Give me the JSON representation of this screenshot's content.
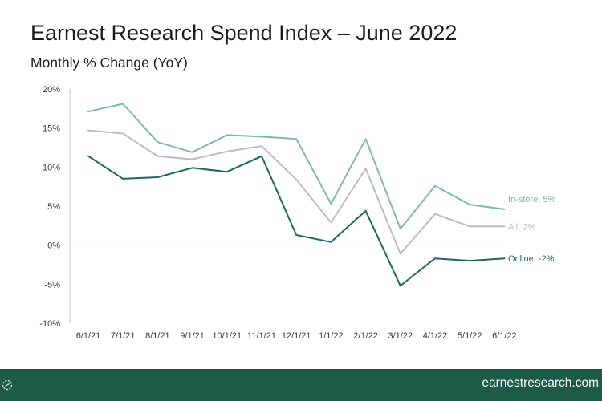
{
  "header": {
    "title": "Earnest Research Spend Index – June 2022",
    "subtitle": "Monthly % Change (YoY)"
  },
  "footer": {
    "url": "earnestresearch.com",
    "logo_icon": "earnest-logo-icon"
  },
  "chart_data": {
    "type": "line",
    "title": "Earnest Research Spend Index – June 2022",
    "subtitle": "Monthly % Change (YoY)",
    "xlabel": "",
    "ylabel": "",
    "categories": [
      "6/1/21",
      "7/1/21",
      "8/1/21",
      "9/1/21",
      "10/1/21",
      "11/1/21",
      "12/1/21",
      "1/1/22",
      "2/1/22",
      "3/1/22",
      "4/1/22",
      "5/1/22",
      "6/1/22"
    ],
    "ylim": [
      -10,
      20
    ],
    "yticks": [
      20,
      15,
      10,
      5,
      0,
      -5,
      -10
    ],
    "ytick_labels": [
      "20%",
      "15%",
      "10%",
      "5%",
      "0%",
      "-5%",
      "-10%"
    ],
    "grid": false,
    "legend": "inline-right",
    "series": [
      {
        "key": "instore",
        "end_label": "In-store, 5%",
        "color": "#7fb8ae",
        "values": [
          17.1,
          18.1,
          13.2,
          11.9,
          14.1,
          13.9,
          13.6,
          5.3,
          13.6,
          2.1,
          7.6,
          5.2,
          4.6
        ]
      },
      {
        "key": "all",
        "end_label": "All, 2%",
        "color": "#bdbdbd",
        "values": [
          14.7,
          14.3,
          11.4,
          11.0,
          12.0,
          12.7,
          8.4,
          2.9,
          9.8,
          -1.1,
          4.0,
          2.4,
          2.4
        ]
      },
      {
        "key": "online",
        "end_label": "Online, -2%",
        "color": "#1e6a5a",
        "values": [
          11.4,
          8.5,
          8.7,
          9.9,
          9.4,
          11.4,
          1.3,
          0.4,
          4.4,
          -5.2,
          -1.7,
          -2.0,
          -1.7
        ]
      }
    ]
  }
}
